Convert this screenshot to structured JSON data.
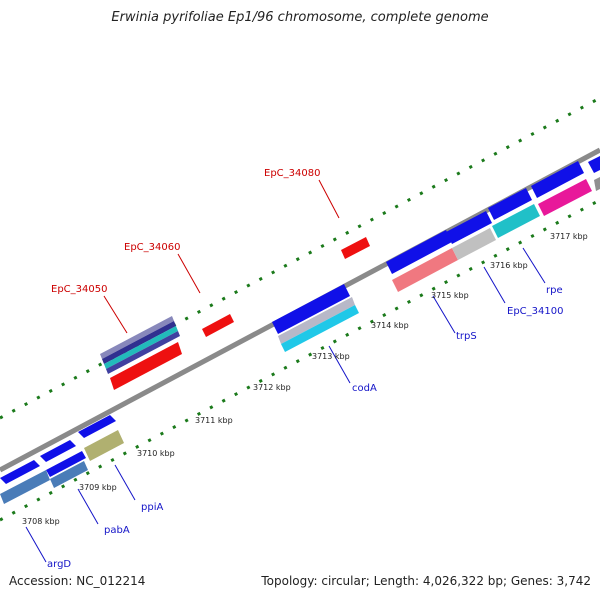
{
  "title": "Erwinia pyrifoliae Ep1/96 chromosome, complete genome",
  "footer": {
    "accession": "Accession: NC_012214",
    "topology": "Topology: circular; Length: 4,026,322 bp; Genes: 3,742"
  },
  "colors": {
    "backbone": "#8a8a8a",
    "ticks": "#1b7a1b",
    "label_blue": "#1414c8",
    "label_red": "#cc0000",
    "gene_blue": "#1010e8",
    "gene_red": "#ee1010"
  },
  "scale": {
    "labels": [
      "3708 kbp",
      "3709 kbp",
      "3710 kbp",
      "3711 kbp",
      "3712 kbp",
      "3713 kbp",
      "3714 kbp",
      "3715 kbp",
      "3716 kbp",
      "3717 kbp"
    ]
  },
  "gene_labels": {
    "epc_34080": "EpC_34080",
    "epc_34060": "EpC_34060",
    "epc_34050": "EpC_34050",
    "argD": "argD",
    "pabA": "pabA",
    "ppiA": "ppiA",
    "codA": "codA",
    "trpS": "trpS",
    "epc_34100": "EpC_34100",
    "rpe": "rpe"
  }
}
